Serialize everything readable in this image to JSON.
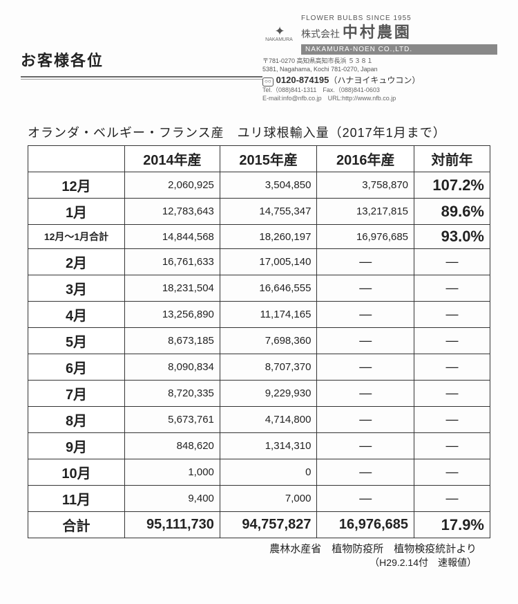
{
  "header": {
    "greeting": "お客様各位",
    "since": "FLOWER  BULBS  SINCE  1955",
    "company_prefix": "株式会社",
    "company_name": "中村農園",
    "romaji": "NAKAMURA-NOEN  CO.,LTD.",
    "addr_jp": "〒781-0270  高知県高知市長浜 ５３８１",
    "addr_en": "5381, Nagahama, Kochi 781-0270, Japan",
    "freecall_num": "0120-874195",
    "freecall_note": "（ハナヨイキュウコン）",
    "telfax": "Tel.（088)841-1311　Fax.（088)841-0603",
    "mailurl": "E-mail:info@nfb.co.jp　URL:http://www.nfb.co.jp",
    "logo_label": "NAKAMURA"
  },
  "table": {
    "title": "オランダ・ベルギー・フランス産　ユリ球根輸入量（2017年1月まで）",
    "columns": [
      "2014年産",
      "2015年産",
      "2016年産",
      "対前年"
    ],
    "rows": [
      {
        "label": "12月",
        "cells": [
          "2,060,925",
          "3,504,850",
          "3,758,870"
        ],
        "pct": "107.2%",
        "bold": true
      },
      {
        "label": "1月",
        "cells": [
          "12,783,643",
          "14,755,347",
          "13,217,815"
        ],
        "pct": "89.6%",
        "bold": true
      },
      {
        "label": "12月～1月合計",
        "cells": [
          "14,844,568",
          "18,260,197",
          "16,976,685"
        ],
        "pct": "93.0%",
        "smallLabel": true
      },
      {
        "label": "2月",
        "cells": [
          "16,761,633",
          "17,005,140",
          "―"
        ],
        "pct": "―",
        "bold": true
      },
      {
        "label": "3月",
        "cells": [
          "18,231,504",
          "16,646,555",
          "―"
        ],
        "pct": "―",
        "bold": true
      },
      {
        "label": "4月",
        "cells": [
          "13,256,890",
          "11,174,165",
          "―"
        ],
        "pct": "―",
        "bold": true
      },
      {
        "label": "5月",
        "cells": [
          "8,673,185",
          "7,698,360",
          "―"
        ],
        "pct": "―",
        "bold": true
      },
      {
        "label": "6月",
        "cells": [
          "8,090,834",
          "8,707,370",
          "―"
        ],
        "pct": "―",
        "bold": true
      },
      {
        "label": "7月",
        "cells": [
          "8,720,335",
          "9,229,930",
          "―"
        ],
        "pct": "―",
        "bold": true
      },
      {
        "label": "8月",
        "cells": [
          "5,673,761",
          "4,714,800",
          "―"
        ],
        "pct": "―",
        "bold": true
      },
      {
        "label": "9月",
        "cells": [
          "848,620",
          "1,314,310",
          "―"
        ],
        "pct": "―",
        "bold": true
      },
      {
        "label": "10月",
        "cells": [
          "1,000",
          "0",
          "―"
        ],
        "pct": "―",
        "bold": true
      },
      {
        "label": "11月",
        "cells": [
          "9,400",
          "7,000",
          "―"
        ],
        "pct": "―",
        "bold": true
      }
    ],
    "total": {
      "label": "合計",
      "cells": [
        "95,111,730",
        "94,757,827",
        "16,976,685"
      ],
      "pct": "17.9%"
    }
  },
  "footer": {
    "line1": "農林水産省　植物防疫所　植物検疫統計より",
    "line2": "（H29.2.14付　速報値）"
  }
}
